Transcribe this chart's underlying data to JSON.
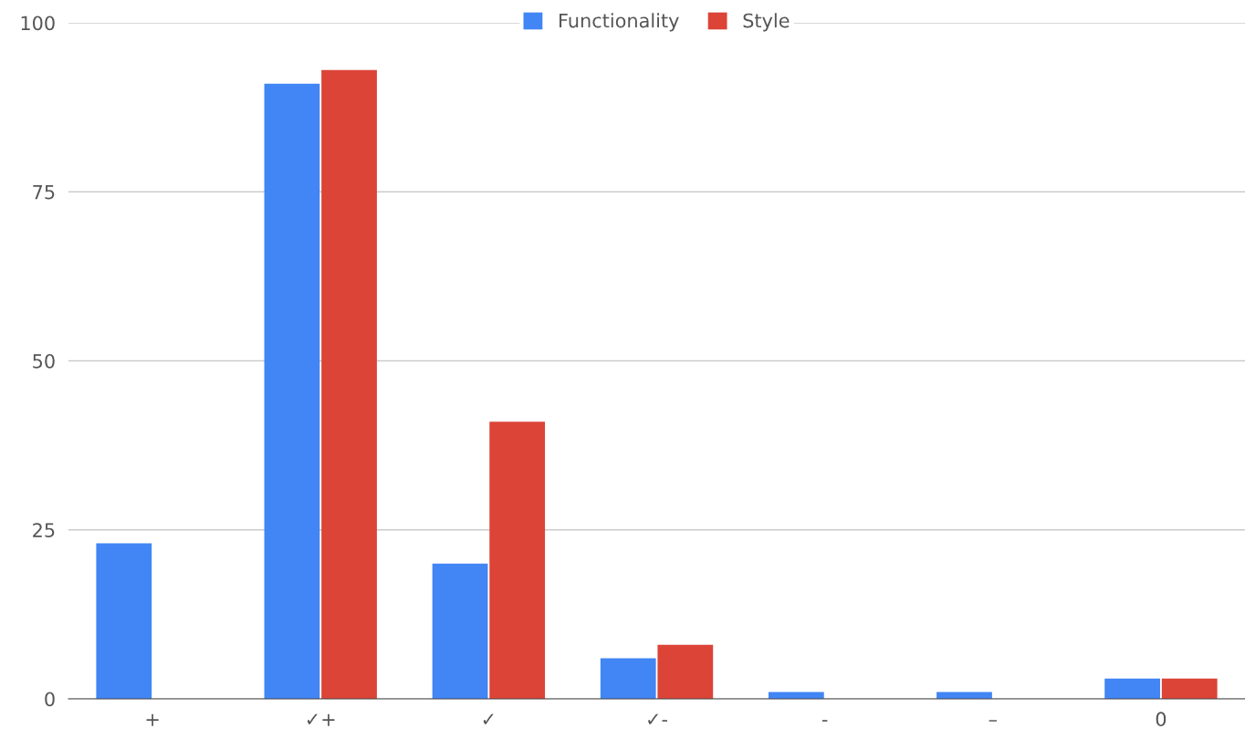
{
  "chart_data": {
    "type": "bar",
    "categories": [
      "+",
      "✓+",
      "✓",
      "✓-",
      "-",
      "–",
      "0"
    ],
    "series": [
      {
        "name": "Functionality",
        "color": "#4285f4",
        "values": [
          23,
          91,
          20,
          6,
          1,
          1,
          3
        ]
      },
      {
        "name": "Style",
        "color": "#db4437",
        "values": [
          0,
          93,
          41,
          8,
          0,
          0,
          3
        ]
      }
    ],
    "ylim": [
      0,
      100
    ],
    "yticks": [
      0,
      25,
      50,
      75,
      100
    ],
    "grid": "y",
    "legend": "top"
  }
}
